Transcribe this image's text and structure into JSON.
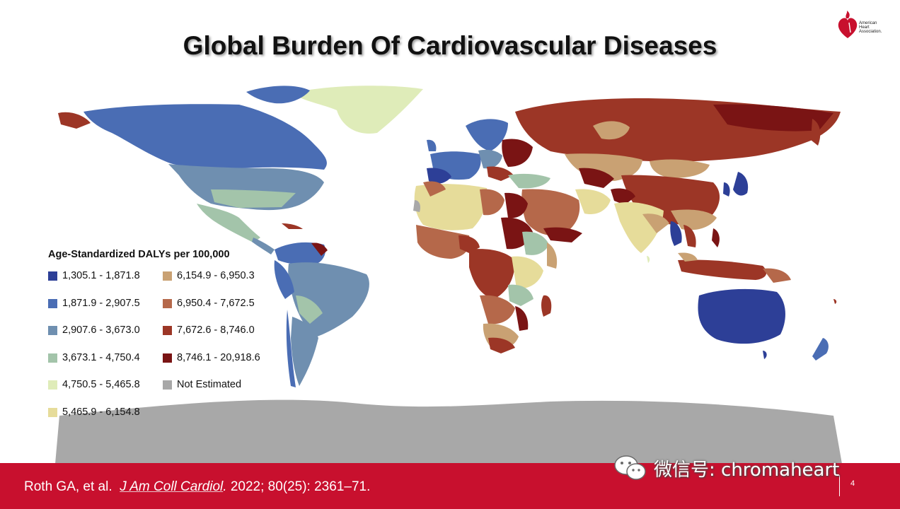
{
  "slide": {
    "title": "Global Burden Of Cardiovascular Diseases",
    "page_number": "4"
  },
  "logo": {
    "icon": "heart-torch-icon",
    "color": "#c8102e",
    "text_line1": "American",
    "text_line2": "Heart",
    "text_line3": "Association."
  },
  "map": {
    "type": "choropleth-world-map",
    "legend_title": "Age-Standardized DALYs per 100,000",
    "legend": [
      {
        "label": "1,305.1 - 1,871.8",
        "color": "#2d3f97"
      },
      {
        "label": "6,154.9 - 6,950.3",
        "color": "#c9a173"
      },
      {
        "label": "1,871.9 - 2,907.5",
        "color": "#4a6db4"
      },
      {
        "label": "6,950.4 - 7,672.5",
        "color": "#b5684a"
      },
      {
        "label": "2,907.6 - 3,673.0",
        "color": "#6f8fb0"
      },
      {
        "label": "7,672.6 - 8,746.0",
        "color": "#9c3626"
      },
      {
        "label": "3,673.1 - 4,750.4",
        "color": "#a3c4aa"
      },
      {
        "label": "8,746.1 - 20,918.6",
        "color": "#7a1414"
      },
      {
        "label": "4,750.5 - 5,465.8",
        "color": "#dfecb9"
      },
      {
        "label": "Not Estimated",
        "color": "#a8a8a8"
      },
      {
        "label": "5,465.9 - 6,154.8",
        "color": "#e6dc9a"
      }
    ]
  },
  "footer": {
    "author": "Roth GA, et al.",
    "journal": "J Am Coll Cardiol",
    "rest": "2022; 80(25): 2361–71.",
    "background": "#c8102e"
  },
  "watermark": {
    "icon": "wechat-icon",
    "text": "微信号: chromaheart"
  }
}
